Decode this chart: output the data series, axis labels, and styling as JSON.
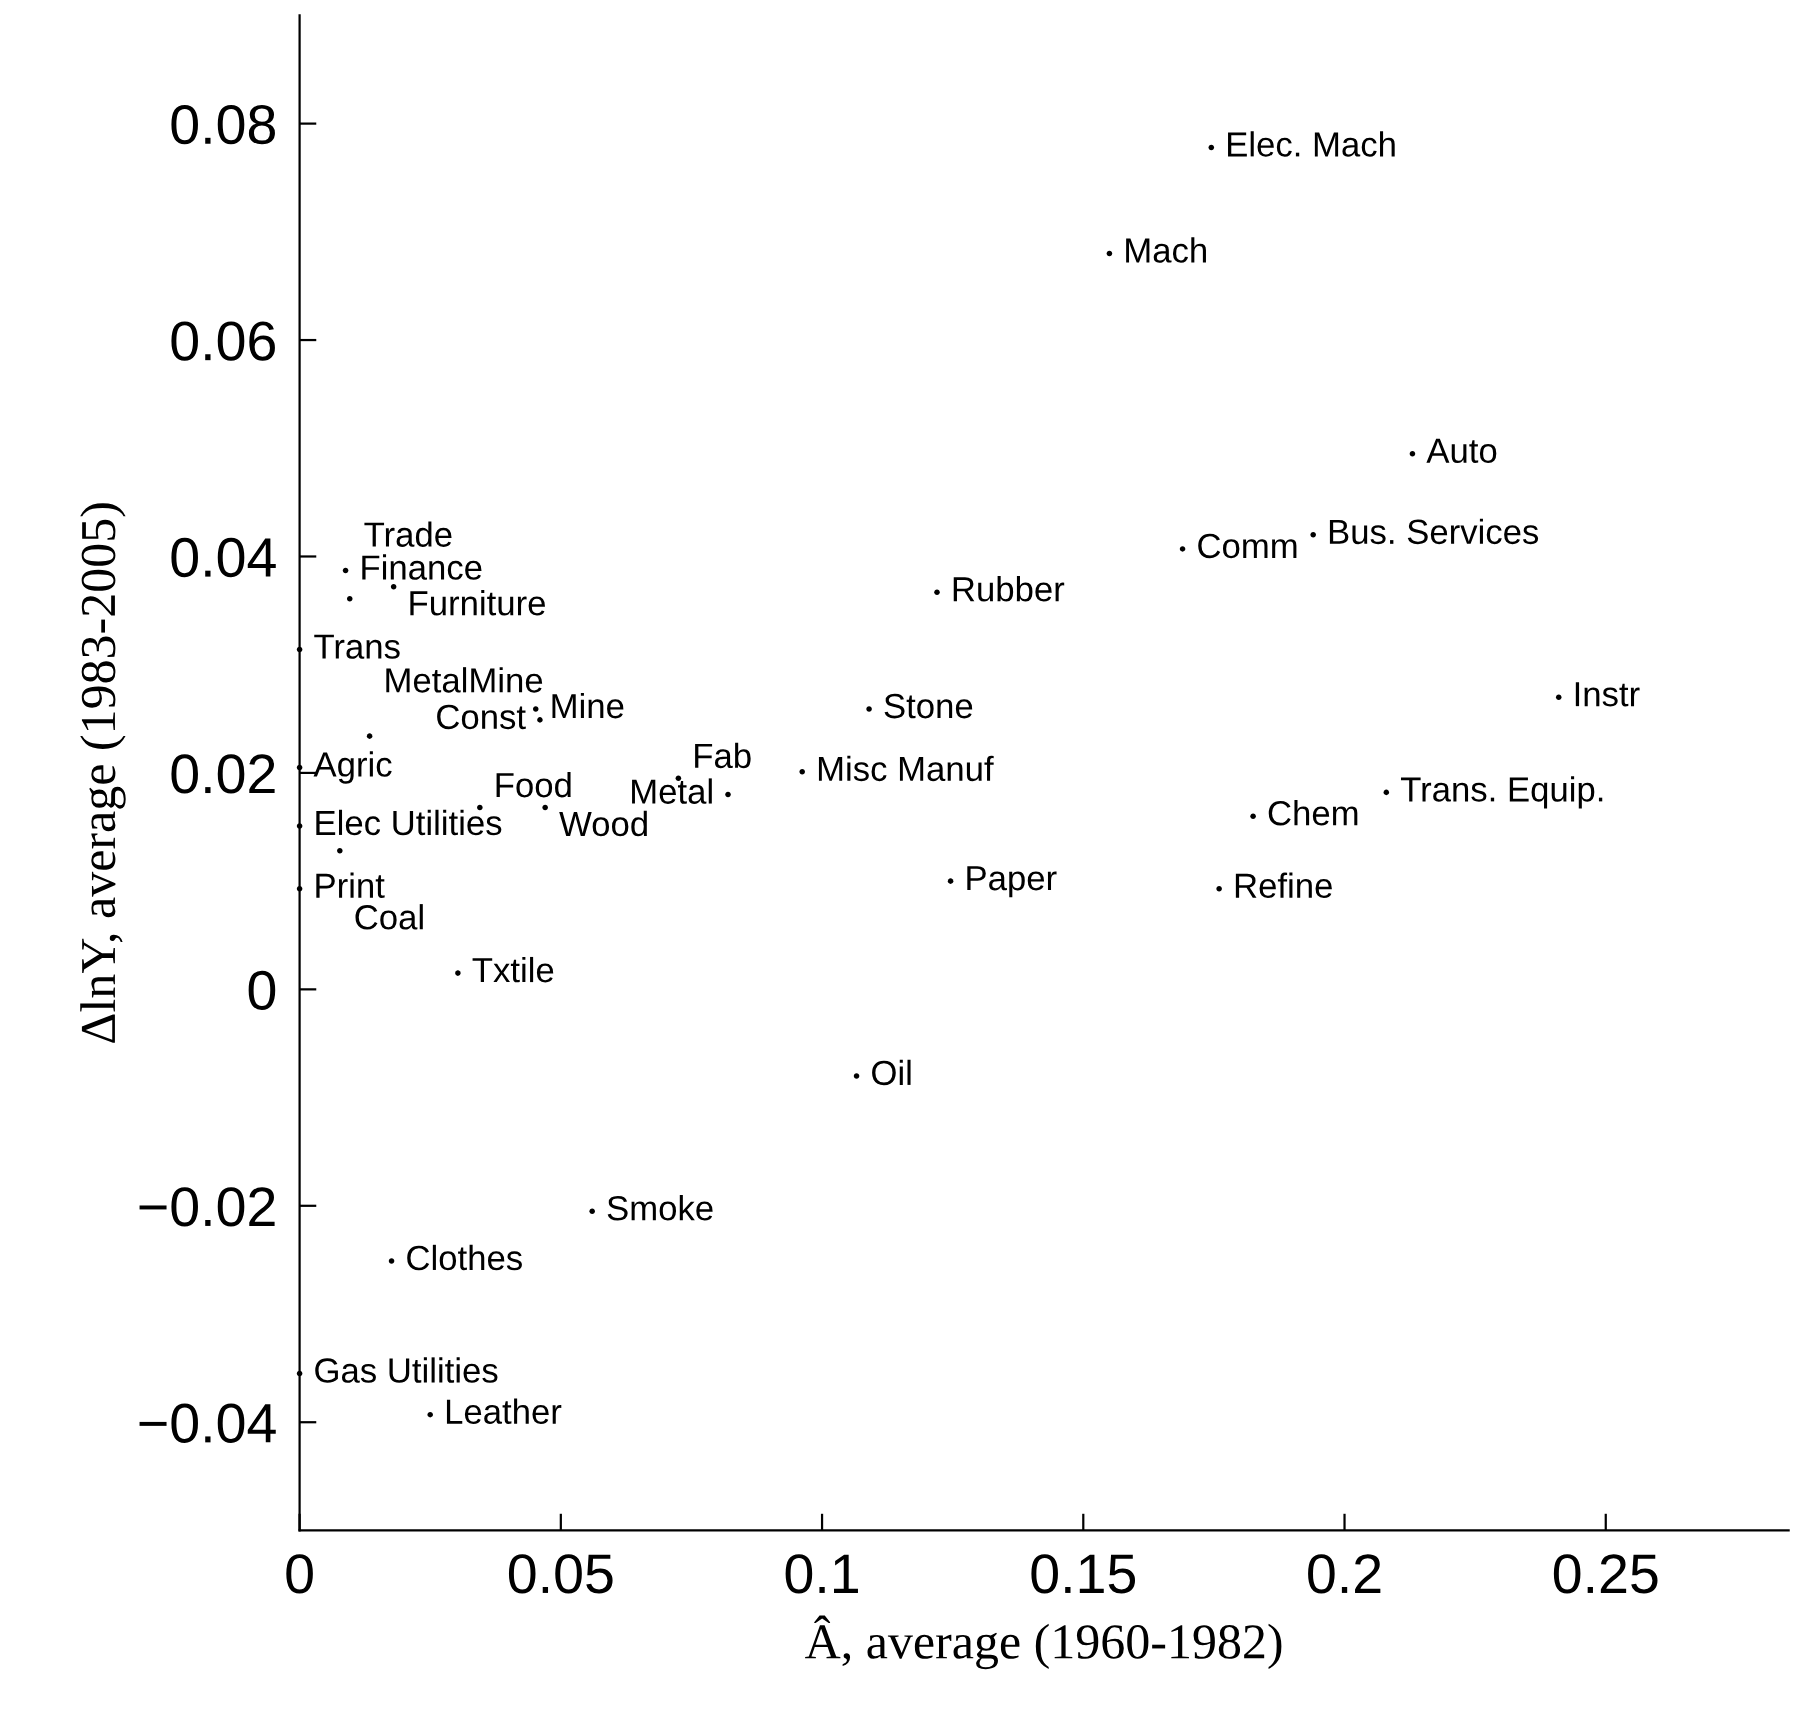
{
  "chart_data": {
    "type": "scatter",
    "xlabel": "Â, average (1960-1982)",
    "ylabel": "ΔlnY, average (1983-2005)",
    "xlim": [
      0,
      0.285
    ],
    "ylim": [
      -0.05,
      0.09
    ],
    "xticks": [
      0,
      0.05,
      0.1,
      0.15,
      0.2,
      0.25
    ],
    "yticks": [
      {
        "value": -0.04,
        "label": "−0.04"
      },
      {
        "value": -0.02,
        "label": "−0.02"
      },
      0,
      0.02,
      0.04,
      0.06,
      0.08
    ],
    "marker": "circle",
    "grid": false,
    "legend": false,
    "series": [
      {
        "color": "#000000",
        "x": [
          0,
          0,
          0,
          0,
          0,
          0.1745,
          0.155,
          0.213,
          0.169,
          0.194,
          0.122,
          0.109,
          0.241,
          0.208,
          0.1825,
          0.1246,
          0.176,
          0.0962,
          0.082,
          0.0725,
          0.047,
          0.0345,
          0.0452,
          0.046,
          0.0134,
          0.0088,
          0.018,
          0.0096,
          0.0077,
          0.0303,
          0.1066,
          0.056,
          0.0176,
          0.025
        ],
        "values": [
          0.0314,
          0.0205,
          0.0151,
          0.0093,
          -0.0355,
          0.0778,
          0.068,
          0.0495,
          0.0407,
          0.042,
          0.0367,
          0.0259,
          0.027,
          0.0182,
          0.016,
          0.01,
          0.0093,
          0.0201,
          0.018,
          0.0195,
          0.0168,
          0.0168,
          0.0259,
          0.0249,
          0.0234,
          0.0387,
          0.0372,
          0.0361,
          0.0128,
          0.0015,
          -0.008,
          -0.0205,
          -0.0251,
          -0.0393
        ],
        "value_labels": [
          "Trans",
          "Agric",
          "Elec Utilities",
          "Print",
          "Gas Utilities",
          "Elec. Mach",
          "Mach",
          "Auto",
          "Comm",
          "Bus. Services",
          "Rubber",
          "Stone",
          "Instr",
          "Trans. Equip.",
          "Chem",
          "Paper",
          "Refine",
          "Misc Manuf",
          "Metal",
          "Fab",
          "Wood",
          "Food",
          "Mine",
          "Const",
          "MetalMine",
          "Finance",
          "Furniture",
          "Trade",
          "Coal",
          "Txtile",
          "Oil",
          "Smoke",
          "Clothes",
          "Leather"
        ]
      }
    ]
  }
}
